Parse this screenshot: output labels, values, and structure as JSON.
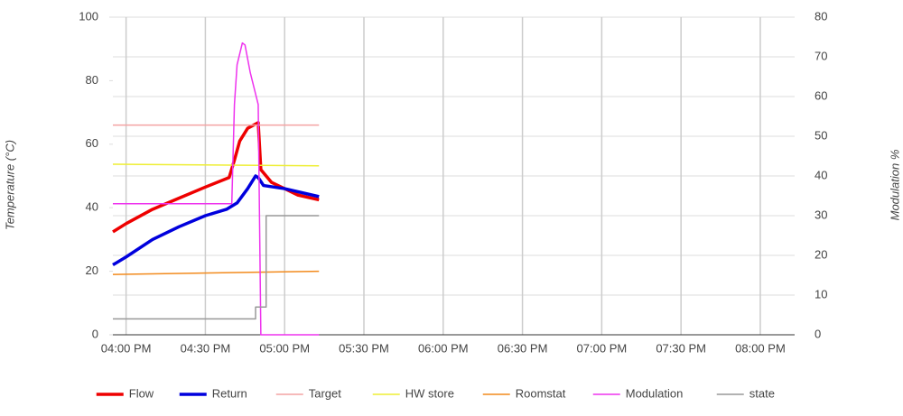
{
  "chart_data": {
    "type": "line",
    "xlim": [
      "15:55",
      "20:13"
    ],
    "xticks": [
      {
        "value": "16:00",
        "label": "04:00 PM"
      },
      {
        "value": "16:30",
        "label": "04:30 PM"
      },
      {
        "value": "17:00",
        "label": "05:00 PM"
      },
      {
        "value": "17:30",
        "label": "05:30 PM"
      },
      {
        "value": "18:00",
        "label": "06:00 PM"
      },
      {
        "value": "18:30",
        "label": "06:30 PM"
      },
      {
        "value": "19:00",
        "label": "07:00 PM"
      },
      {
        "value": "19:30",
        "label": "07:30 PM"
      },
      {
        "value": "20:00",
        "label": "08:00 PM"
      }
    ],
    "ylim": [
      0,
      100
    ],
    "yticks": [
      0,
      20,
      40,
      60,
      80,
      100
    ],
    "y2lim": [
      0,
      80
    ],
    "y2ticks": [
      0,
      10,
      20,
      30,
      40,
      50,
      60,
      70,
      80
    ],
    "ylabel": "Temperature (°C)",
    "y2label": "Modulation %",
    "grid": true,
    "legend": "bottom",
    "series": [
      {
        "name": "Flow",
        "color": "#ee0000",
        "width": 3.5,
        "x": [
          "15:55",
          "16:00",
          "16:10",
          "16:20",
          "16:30",
          "16:39",
          "16:41",
          "16:43",
          "16:46",
          "16:50",
          "16:51",
          "16:52",
          "16:55",
          "17:00",
          "17:05",
          "17:13"
        ],
        "values": [
          32.4,
          35,
          39.5,
          43,
          46.5,
          49.5,
          55,
          61,
          65,
          66.8,
          52,
          51,
          48,
          46,
          44,
          42.5
        ]
      },
      {
        "name": "Return",
        "color": "#0000dd",
        "width": 3.5,
        "x": [
          "15:55",
          "16:00",
          "16:10",
          "16:20",
          "16:30",
          "16:38",
          "16:42",
          "16:46",
          "16:49",
          "16:50",
          "16:52",
          "17:00",
          "17:13"
        ],
        "values": [
          22,
          24.5,
          30,
          34,
          37.5,
          39.5,
          41.5,
          46,
          50,
          49.5,
          47,
          46,
          43.5
        ]
      },
      {
        "name": "Target",
        "color": "#f4a3a3",
        "width": 1.5,
        "x": [
          "15:55",
          "17:13"
        ],
        "values": [
          66,
          66
        ]
      },
      {
        "name": "HW store",
        "color": "#eeee33",
        "width": 1.5,
        "x": [
          "15:55",
          "17:13"
        ],
        "values": [
          53.7,
          53.2
        ]
      },
      {
        "name": "Roomstat",
        "color": "#f28a1c",
        "width": 1.5,
        "x": [
          "15:55",
          "17:13"
        ],
        "values": [
          19,
          20
        ]
      },
      {
        "name": "Modulation",
        "color": "#ee33ee",
        "width": 1.5,
        "axis": "y2",
        "x": [
          "15:55",
          "16:40",
          "16:41",
          "16:42",
          "16:44",
          "16:45",
          "16:47",
          "16:50",
          "16:51",
          "17:13"
        ],
        "values": [
          33,
          33,
          58,
          68,
          73.5,
          73,
          66,
          58,
          0,
          0
        ]
      },
      {
        "name": "state",
        "color": "#999999",
        "width": 1.5,
        "axis": "y2",
        "x": [
          "15:55",
          "16:49",
          "16:49",
          "16:53",
          "16:53",
          "17:13"
        ],
        "values": [
          4,
          4,
          7,
          7,
          30,
          30
        ]
      }
    ]
  }
}
